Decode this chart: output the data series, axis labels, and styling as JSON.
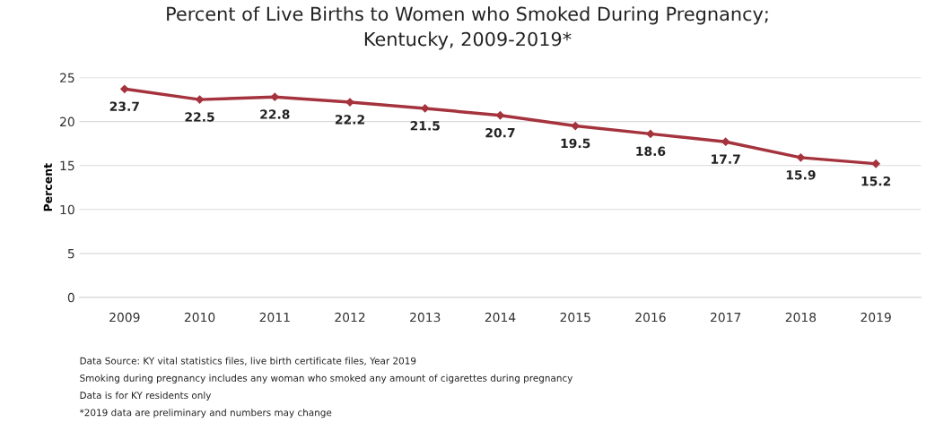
{
  "chart_data": {
    "type": "line",
    "title": "Percent of Live Births to Women who Smoked During Pregnancy;\nKentucky, 2009-2019*",
    "ylabel": "Percent",
    "categories": [
      "2009",
      "2010",
      "2011",
      "2012",
      "2013",
      "2014",
      "2015",
      "2016",
      "2017",
      "2018",
      "2019"
    ],
    "series": [
      {
        "color": "#a5333d",
        "values": [
          23.7,
          22.5,
          22.8,
          22.2,
          21.5,
          20.7,
          19.5,
          18.6,
          17.7,
          15.9,
          15.2
        ]
      }
    ],
    "ylim": [
      0,
      25
    ],
    "yticks": [
      0,
      5,
      10,
      15,
      20,
      25
    ],
    "grid": "y",
    "marker": "diamond",
    "line_style": "solid",
    "data_labels": true,
    "annotations": [
      "Data Source: KY vital statistics files, live birth certificate files, Year 2019",
      "Smoking during pregnancy includes any woman who smoked any amount of cigarettes during pregnancy",
      "Data is for KY residents only",
      "*2019 data are preliminary and numbers may change"
    ]
  }
}
